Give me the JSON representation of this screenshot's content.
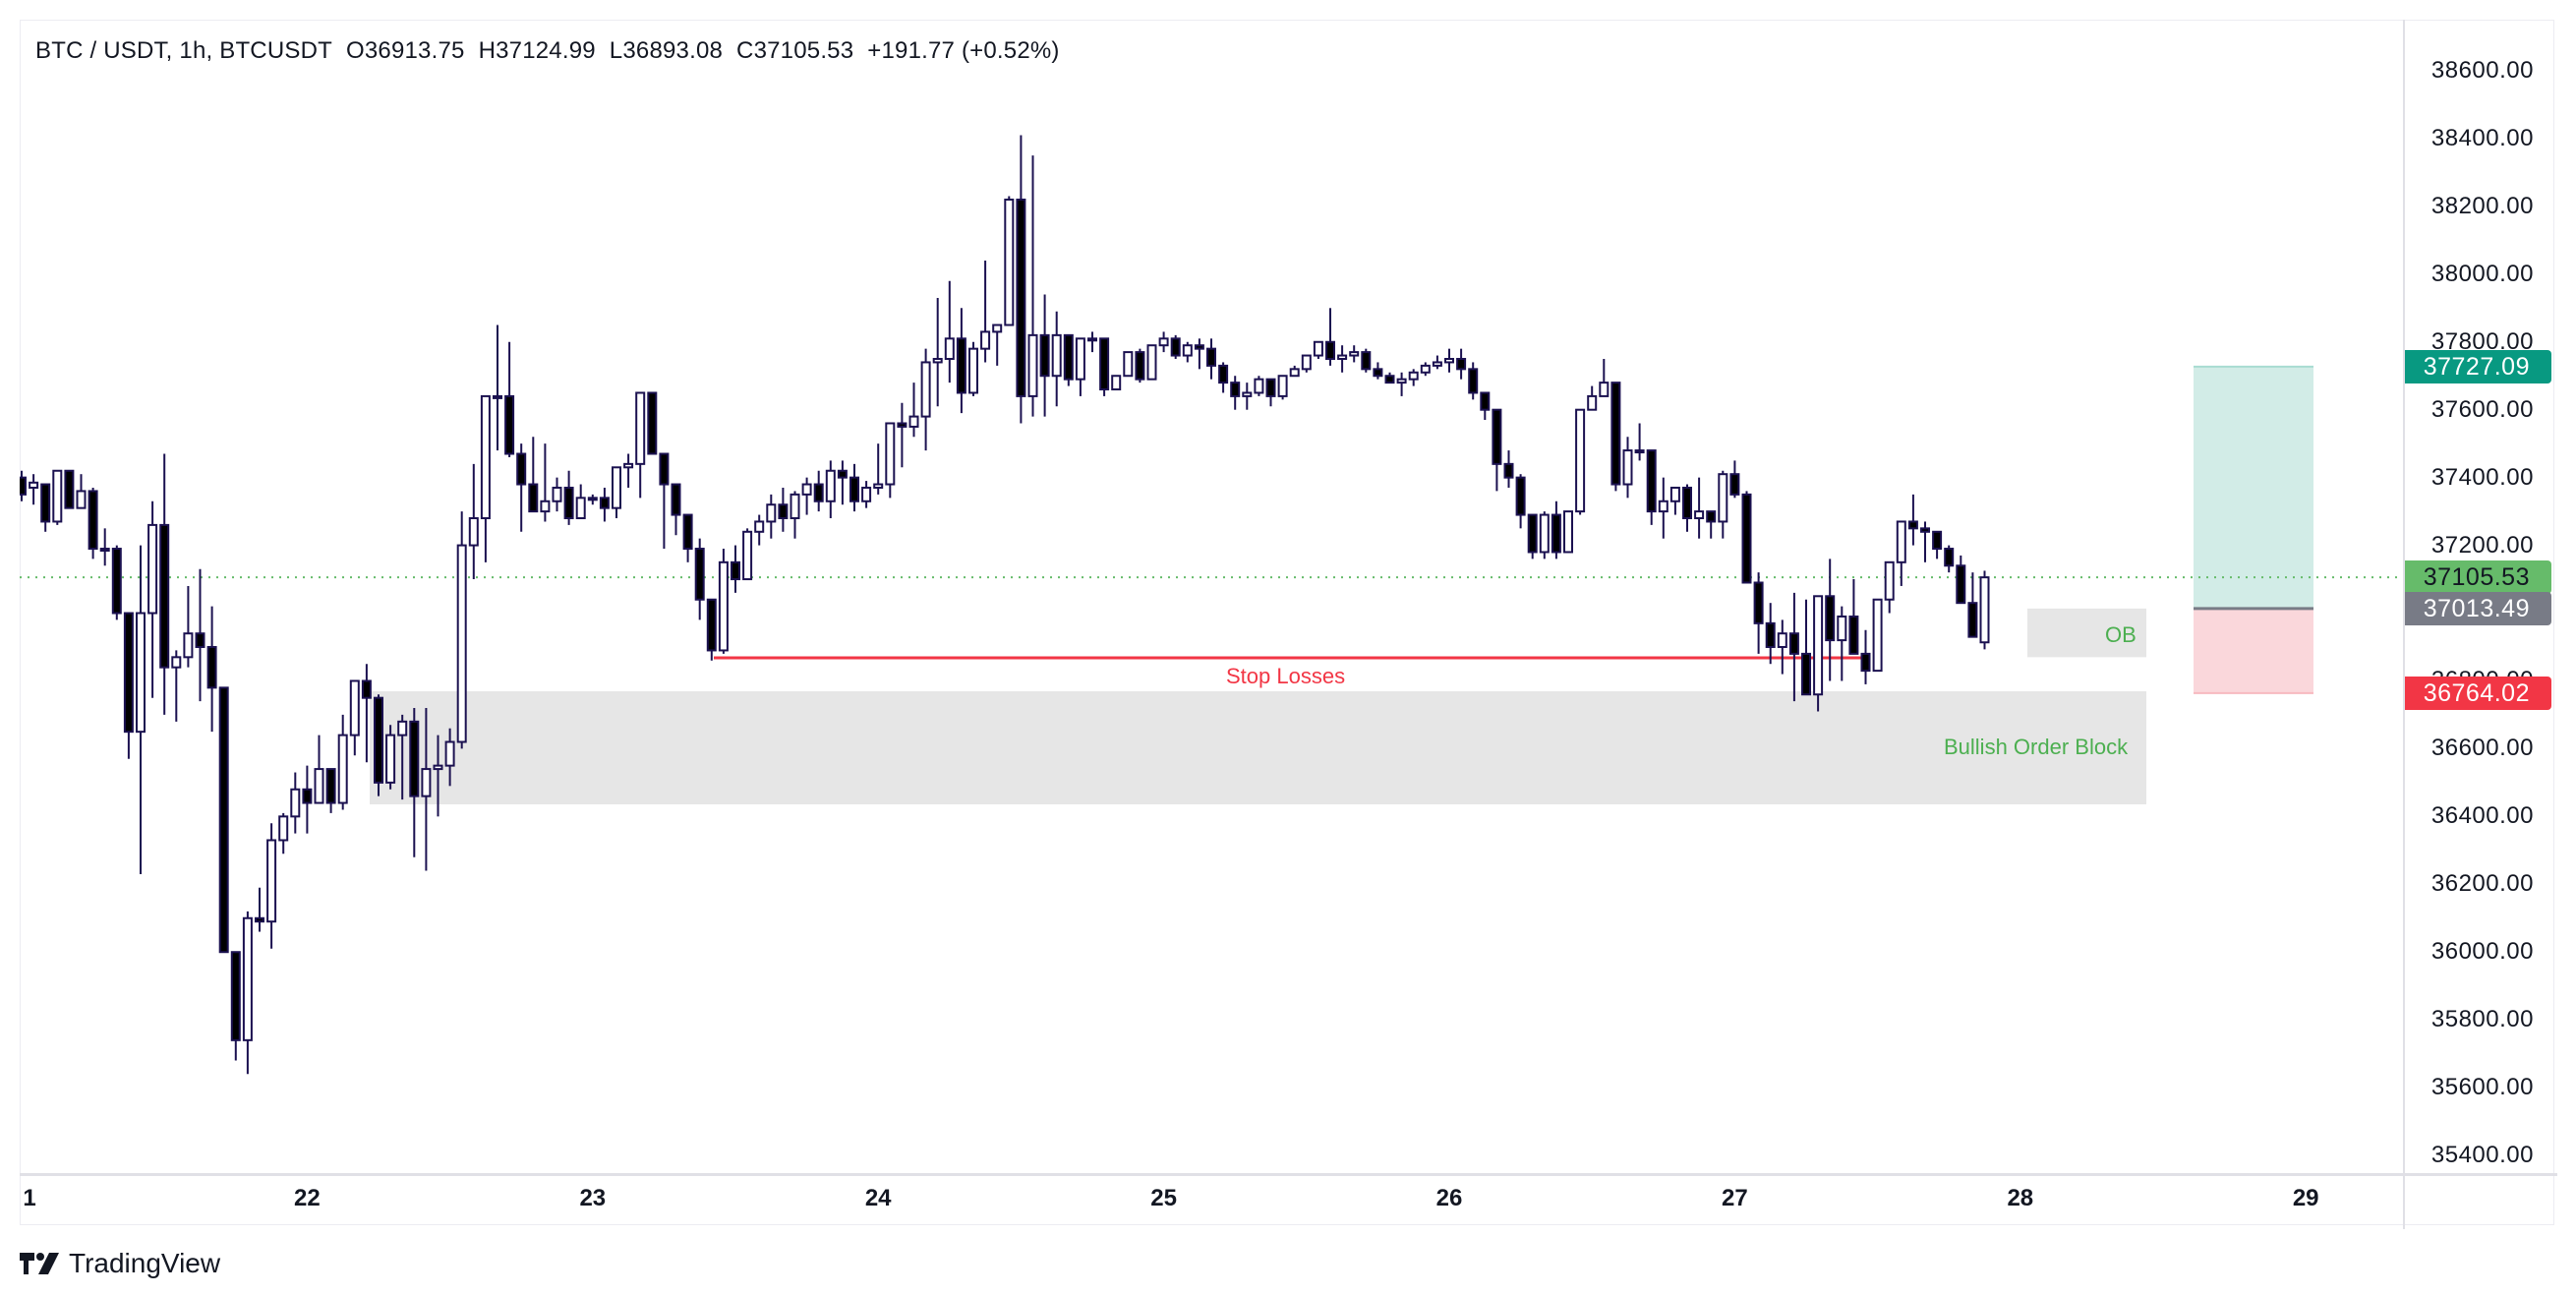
{
  "header": {
    "symbol": "BTC / USDT, 1h, BTCUSDT",
    "open": "O36913.75",
    "high": "H37124.99",
    "low": "L36893.08",
    "close": "C37105.53",
    "change": "+191.77 (+0.52%)"
  },
  "price_axis": {
    "ticks": [
      "38600.00",
      "38400.00",
      "38200.00",
      "38000.00",
      "37800.00",
      "37600.00",
      "37400.00",
      "37200.00",
      "36800.00",
      "36600.00",
      "36400.00",
      "36200.00",
      "36000.00",
      "35800.00",
      "35600.00",
      "35400.00"
    ],
    "badges": {
      "target": {
        "label": "37727.09",
        "bg": "#089981",
        "fg": "#ffffff"
      },
      "last_price": {
        "label": "37105.53",
        "bg": "#66bb6a",
        "fg": "#131722"
      },
      "entry": {
        "label": "37013.49",
        "bg": "#787b86",
        "fg": "#ffffff"
      },
      "stop": {
        "label": "36764.02",
        "bg": "#f23645",
        "fg": "#ffffff"
      }
    }
  },
  "time_axis": {
    "labels": [
      "1",
      "22",
      "23",
      "24",
      "25",
      "26",
      "27",
      "28",
      "29"
    ]
  },
  "annotations": {
    "stop_losses": "Stop Losses",
    "ob": "OB",
    "bullish_order_block": "Bullish Order Block"
  },
  "branding": {
    "logo_text": "TradingView"
  },
  "colors": {
    "candle_outline": "#1b1150",
    "candle_bear_fill": "#000000",
    "candle_bull_fill": "#ffffff",
    "stop_line": "#f23645",
    "label_green": "#4caf50",
    "zone_gray": "#e6e6e6",
    "target_zone": "#d2ece7",
    "stop_zone": "#fad7db",
    "price_line": "#66bb6a"
  },
  "chart_data": {
    "type": "candlestick",
    "title": "BTC / USDT, 1h, BTCUSDT",
    "xlabel": "",
    "ylabel": "",
    "ylim": [
      35300,
      38700
    ],
    "y_ticks": [
      38600,
      38400,
      38200,
      38000,
      37800,
      37600,
      37400,
      37200,
      36800,
      36600,
      36400,
      36200,
      36000,
      35800,
      35600,
      35400
    ],
    "x_ticks": [
      {
        "label": "1",
        "index": 0
      },
      {
        "label": "22",
        "index": 24
      },
      {
        "label": "23",
        "index": 48
      },
      {
        "label": "24",
        "index": 72
      },
      {
        "label": "25",
        "index": 96
      },
      {
        "label": "26",
        "index": 120
      },
      {
        "label": "27",
        "index": 144
      },
      {
        "label": "28",
        "index": 168
      },
      {
        "label": "29",
        "index": 192
      }
    ],
    "last": {
      "open": 36913.75,
      "high": 37124.99,
      "low": 36893.08,
      "close": 37105.53,
      "change": 191.77,
      "change_pct": 0.52
    },
    "candles_ohlc": [
      [
        37400,
        37420,
        37330,
        37350
      ],
      [
        37370,
        37410,
        37320,
        37385
      ],
      [
        37380,
        37380,
        37240,
        37270
      ],
      [
        37270,
        37420,
        37260,
        37420
      ],
      [
        37420,
        37420,
        37310,
        37310
      ],
      [
        37310,
        37410,
        37310,
        37360
      ],
      [
        37360,
        37370,
        37160,
        37190
      ],
      [
        37190,
        37250,
        37140,
        37190
      ],
      [
        37190,
        37200,
        36980,
        37000
      ],
      [
        37000,
        37000,
        36570,
        36650
      ],
      [
        36650,
        37200,
        36230,
        37000
      ],
      [
        37000,
        37330,
        36750,
        37260
      ],
      [
        37260,
        37470,
        36700,
        36840
      ],
      [
        36840,
        36890,
        36680,
        36870
      ],
      [
        36870,
        37080,
        36840,
        36940
      ],
      [
        36940,
        37130,
        36740,
        36900
      ],
      [
        36900,
        37020,
        36650,
        36780
      ],
      [
        36780,
        36780,
        36250,
        36000
      ],
      [
        36000,
        35990,
        35680,
        35740
      ],
      [
        35740,
        36120,
        35640,
        36100
      ],
      [
        36100,
        36190,
        36060,
        36090
      ],
      [
        36090,
        36380,
        36010,
        36330
      ],
      [
        36330,
        36410,
        36290,
        36400
      ],
      [
        36400,
        36530,
        36350,
        36480
      ],
      [
        36480,
        36550,
        36350,
        36440
      ],
      [
        36440,
        36640,
        36460,
        36540
      ],
      [
        36540,
        36530,
        36410,
        36440
      ],
      [
        36440,
        36700,
        36420,
        36640
      ],
      [
        36640,
        36800,
        36580,
        36800
      ],
      [
        36800,
        36850,
        36560,
        36750
      ],
      [
        36750,
        36760,
        36460,
        36500
      ],
      [
        36500,
        36670,
        36480,
        36640
      ],
      [
        36640,
        36700,
        36450,
        36680
      ],
      [
        36680,
        36720,
        36280,
        36460
      ],
      [
        36460,
        36720,
        36240,
        36540
      ],
      [
        36540,
        36640,
        36400,
        36550
      ],
      [
        36550,
        36660,
        36490,
        36620
      ],
      [
        36620,
        37300,
        36600,
        37200
      ],
      [
        37200,
        37440,
        37100,
        37280
      ],
      [
        37280,
        37590,
        37150,
        37640
      ],
      [
        37640,
        37850,
        37480,
        37640
      ],
      [
        37640,
        37800,
        37460,
        37470
      ],
      [
        37470,
        37500,
        37240,
        37380
      ],
      [
        37380,
        37520,
        37300,
        37300
      ],
      [
        37300,
        37500,
        37270,
        37330
      ],
      [
        37330,
        37400,
        37300,
        37370
      ],
      [
        37370,
        37420,
        37260,
        37280
      ],
      [
        37280,
        37380,
        37290,
        37340
      ],
      [
        37340,
        37350,
        37320,
        37340
      ],
      [
        37340,
        37370,
        37270,
        37310
      ],
      [
        37310,
        37430,
        37280,
        37430
      ],
      [
        37430,
        37470,
        37370,
        37440
      ],
      [
        37440,
        37650,
        37340,
        37650
      ],
      [
        37650,
        37650,
        37470,
        37470
      ],
      [
        37470,
        37470,
        37190,
        37380
      ],
      [
        37380,
        37300,
        37230,
        37290
      ],
      [
        37290,
        37250,
        37150,
        37190
      ],
      [
        37190,
        37220,
        36980,
        37040
      ],
      [
        37040,
        36950,
        36860,
        36890
      ],
      [
        36890,
        37190,
        36880,
        37150
      ],
      [
        37150,
        37200,
        37060,
        37100
      ],
      [
        37100,
        37250,
        37100,
        37240
      ],
      [
        37240,
        37290,
        37200,
        37270
      ],
      [
        37270,
        37350,
        37220,
        37320
      ],
      [
        37320,
        37370,
        37240,
        37280
      ],
      [
        37280,
        37360,
        37220,
        37350
      ],
      [
        37350,
        37400,
        37290,
        37380
      ],
      [
        37380,
        37420,
        37300,
        37330
      ],
      [
        37330,
        37450,
        37280,
        37420
      ],
      [
        37420,
        37450,
        37320,
        37400
      ],
      [
        37400,
        37440,
        37300,
        37330
      ],
      [
        37330,
        37390,
        37310,
        37370
      ],
      [
        37370,
        37500,
        37350,
        37380
      ],
      [
        37380,
        37560,
        37340,
        37560
      ],
      [
        37560,
        37620,
        37430,
        37550
      ],
      [
        37550,
        37680,
        37520,
        37580
      ],
      [
        37580,
        37780,
        37480,
        37740
      ],
      [
        37740,
        37930,
        37610,
        37750
      ],
      [
        37750,
        37980,
        37680,
        37810
      ],
      [
        37810,
        37900,
        37590,
        37650
      ],
      [
        37650,
        37800,
        37640,
        37780
      ],
      [
        37780,
        38040,
        37740,
        37830
      ],
      [
        37830,
        37850,
        37730,
        37850
      ],
      [
        37850,
        38230,
        37860,
        38220
      ],
      [
        38220,
        38410,
        37560,
        37640
      ],
      [
        37640,
        38350,
        37580,
        37820
      ],
      [
        37820,
        37940,
        37580,
        37700
      ],
      [
        37700,
        37890,
        37610,
        37820
      ],
      [
        37820,
        37770,
        37670,
        37690
      ],
      [
        37690,
        37790,
        37640,
        37810
      ],
      [
        37810,
        37830,
        37770,
        37810
      ],
      [
        37810,
        37810,
        37640,
        37660
      ],
      [
        37660,
        37700,
        37660,
        37700
      ],
      [
        37700,
        37770,
        37700,
        37770
      ],
      [
        37770,
        37780,
        37680,
        37690
      ],
      [
        37690,
        37790,
        37710,
        37790
      ],
      [
        37790,
        37830,
        37770,
        37810
      ],
      [
        37810,
        37820,
        37750,
        37760
      ],
      [
        37760,
        37800,
        37740,
        37790
      ],
      [
        37790,
        37810,
        37720,
        37780
      ],
      [
        37780,
        37810,
        37690,
        37730
      ],
      [
        37730,
        37740,
        37650,
        37680
      ],
      [
        37680,
        37700,
        37600,
        37640
      ],
      [
        37640,
        37680,
        37600,
        37650
      ],
      [
        37650,
        37700,
        37640,
        37690
      ],
      [
        37690,
        37690,
        37610,
        37640
      ],
      [
        37640,
        37700,
        37630,
        37700
      ],
      [
        37700,
        37730,
        37700,
        37720
      ],
      [
        37720,
        37760,
        37710,
        37760
      ],
      [
        37760,
        37800,
        37750,
        37800
      ],
      [
        37800,
        37900,
        37730,
        37750
      ],
      [
        37750,
        37790,
        37710,
        37760
      ],
      [
        37760,
        37790,
        37740,
        37770
      ],
      [
        37770,
        37780,
        37710,
        37720
      ],
      [
        37720,
        37740,
        37690,
        37700
      ],
      [
        37700,
        37710,
        37680,
        37680
      ],
      [
        37680,
        37710,
        37640,
        37690
      ],
      [
        37690,
        37720,
        37670,
        37710
      ],
      [
        37710,
        37740,
        37700,
        37730
      ],
      [
        37730,
        37760,
        37720,
        37740
      ],
      [
        37740,
        37780,
        37710,
        37750
      ],
      [
        37750,
        37780,
        37690,
        37720
      ],
      [
        37720,
        37740,
        37630,
        37650
      ],
      [
        37650,
        37630,
        37570,
        37600
      ],
      [
        37600,
        37570,
        37360,
        37440
      ],
      [
        37440,
        37480,
        37370,
        37400
      ],
      [
        37400,
        37410,
        37250,
        37290
      ],
      [
        37290,
        37280,
        37160,
        37180
      ],
      [
        37180,
        37300,
        37160,
        37290
      ],
      [
        37290,
        37330,
        37160,
        37180
      ],
      [
        37180,
        37300,
        37180,
        37300
      ],
      [
        37300,
        37570,
        37290,
        37600
      ],
      [
        37600,
        37670,
        37620,
        37640
      ],
      [
        37640,
        37750,
        37640,
        37680
      ],
      [
        37680,
        37660,
        37360,
        37380
      ],
      [
        37380,
        37520,
        37340,
        37480
      ],
      [
        37480,
        37560,
        37450,
        37480
      ],
      [
        37480,
        37480,
        37260,
        37300
      ],
      [
        37300,
        37400,
        37220,
        37330
      ],
      [
        37330,
        37370,
        37290,
        37370
      ],
      [
        37370,
        37380,
        37240,
        37280
      ],
      [
        37280,
        37400,
        37220,
        37300
      ],
      [
        37300,
        37300,
        37220,
        37270
      ],
      [
        37270,
        37420,
        37220,
        37410
      ],
      [
        37410,
        37450,
        37340,
        37350
      ],
      [
        37350,
        37360,
        37110,
        37090
      ],
      [
        37090,
        37120,
        36880,
        36970
      ],
      [
        36970,
        37030,
        36850,
        36900
      ],
      [
        36900,
        36980,
        36820,
        36940
      ],
      [
        36940,
        37060,
        36740,
        36880
      ],
      [
        36880,
        37040,
        36760,
        36760
      ],
      [
        36760,
        36930,
        36710,
        37050
      ],
      [
        37050,
        37160,
        36800,
        36920
      ],
      [
        36920,
        37020,
        36800,
        36990
      ],
      [
        36990,
        37100,
        36900,
        36880
      ],
      [
        36880,
        36950,
        36790,
        36830
      ],
      [
        36830,
        37000,
        36830,
        37040
      ],
      [
        37040,
        37120,
        37000,
        37150
      ],
      [
        37150,
        37250,
        37080,
        37270
      ],
      [
        37270,
        37350,
        37200,
        37250
      ],
      [
        37250,
        37270,
        37150,
        37240
      ],
      [
        37240,
        37240,
        37160,
        37190
      ],
      [
        37190,
        37200,
        37120,
        37140
      ],
      [
        37140,
        37170,
        37090,
        37030
      ],
      [
        37030,
        37120,
        36950,
        36930
      ],
      [
        36913.75,
        37124.99,
        36893.08,
        37105.53
      ]
    ],
    "levels": {
      "last_price": 37105.53,
      "target": 37727.09,
      "entry": 37013.49,
      "stop": 36764.02,
      "stop_losses_line": 36830
    },
    "zones": [
      {
        "label": "OB",
        "top": 37013.49,
        "bottom": 36870
      },
      {
        "label": "Bullish Order Block",
        "top": 36780,
        "bottom": 36440
      }
    ]
  }
}
